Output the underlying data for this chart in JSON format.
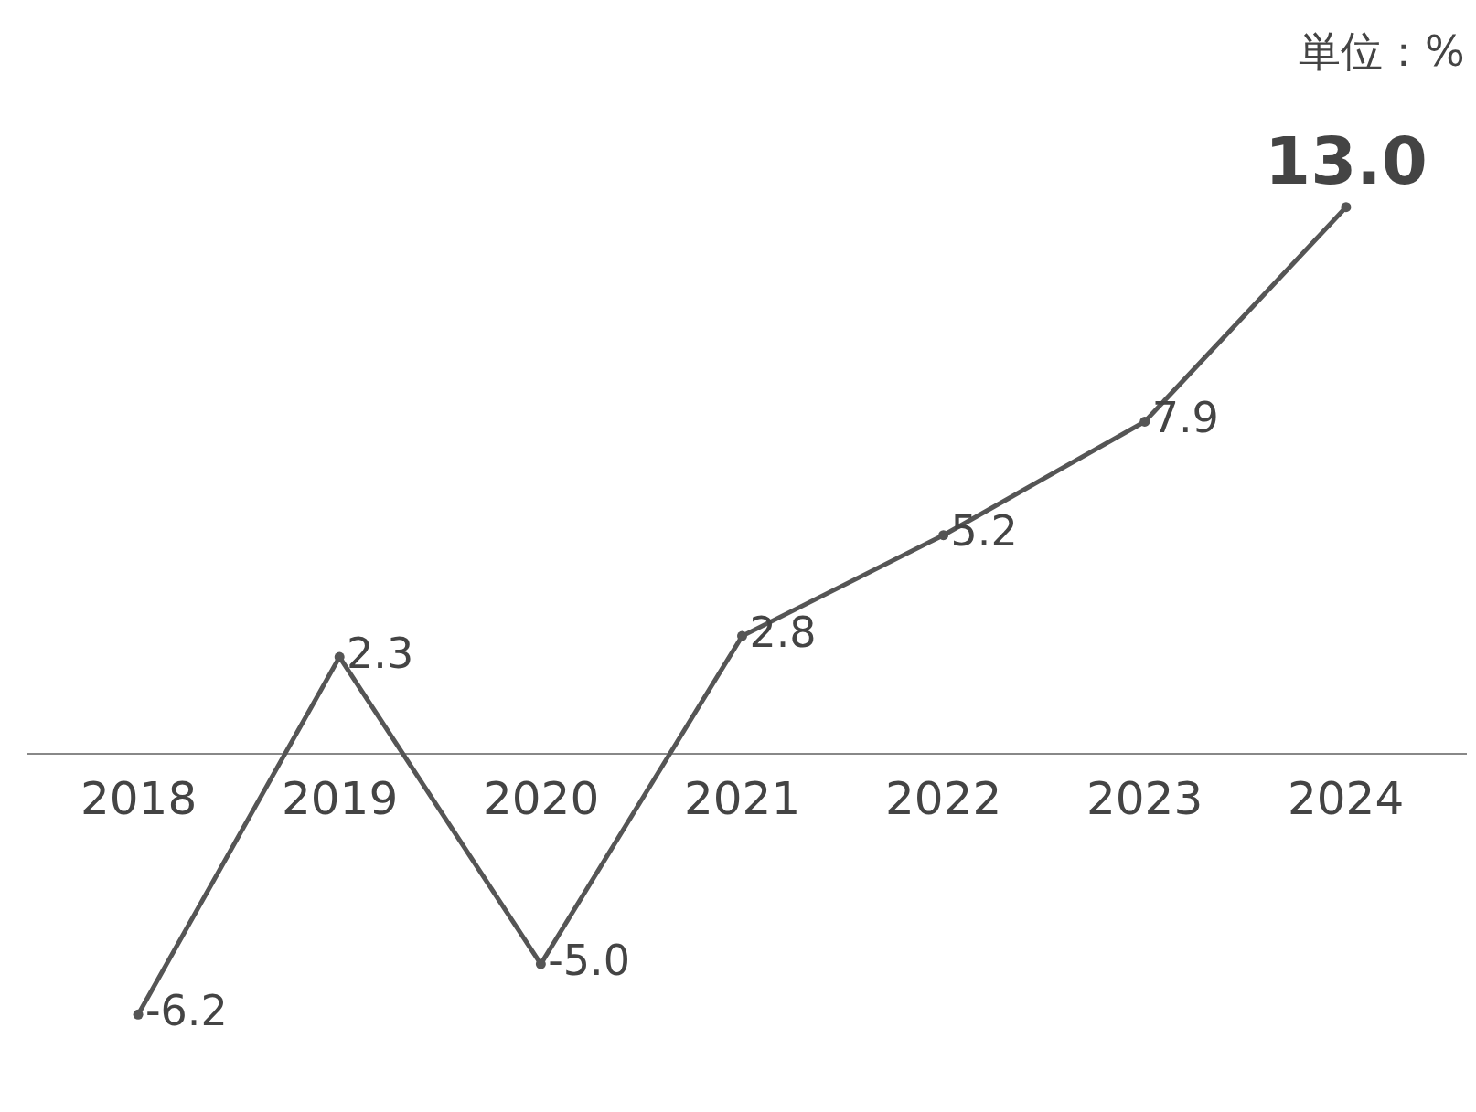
{
  "chart_data": {
    "type": "line",
    "categories": [
      "2018",
      "2019",
      "2020",
      "2021",
      "2022",
      "2023",
      "2024"
    ],
    "values": [
      -6.2,
      2.3,
      -5.0,
      2.8,
      5.2,
      7.9,
      13.0
    ],
    "color": "#555555",
    "value_labels": [
      "-6.2",
      "2.3",
      "-5.0",
      "2.8",
      "5.2",
      "7.9",
      "13.0"
    ],
    "tick_labels": "x",
    "legend": false,
    "marker": "circle",
    "line_style": "solid",
    "annotations": [
      "単位：%"
    ]
  }
}
